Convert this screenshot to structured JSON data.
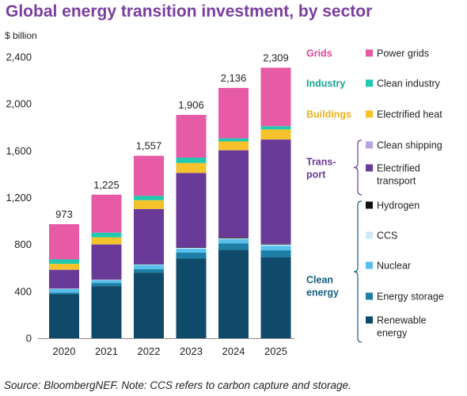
{
  "title": "Global energy transition investment, by sector",
  "source": "Source: BloombergNEF. Note: CCS refers to carbon capture and storage.",
  "chart_data": {
    "type": "bar",
    "stacked": true,
    "unit_label": "$ billion",
    "categories": [
      "2020",
      "2021",
      "2022",
      "2023",
      "2024",
      "2025"
    ],
    "ylim": [
      0,
      2400
    ],
    "yticks": [
      0,
      400,
      800,
      1200,
      1600,
      2000,
      2400
    ],
    "ytick_labels": [
      "0",
      "400",
      "800",
      "1,200",
      "1,600",
      "2,000",
      "2,400"
    ],
    "totals": [
      "973",
      "1,225",
      "1,557",
      "1,906",
      "2,136",
      "2,309"
    ],
    "grid": false,
    "legend_position": "right",
    "series": [
      {
        "name": "Renewable energy",
        "label_lines": [
          "Renewable",
          "energy"
        ],
        "color": "#0f4a6b",
        "values": [
          375,
          445,
          560,
          680,
          755,
          690
        ]
      },
      {
        "name": "Energy storage",
        "color": "#1d7ea6",
        "values": [
          15,
          25,
          30,
          50,
          55,
          60
        ]
      },
      {
        "name": "Nuclear",
        "color": "#58c0ec",
        "values": [
          30,
          25,
          35,
          35,
          35,
          40
        ]
      },
      {
        "name": "CCS",
        "color": "#cfe9f7",
        "values": [
          3,
          4,
          5,
          6,
          8,
          10
        ]
      },
      {
        "name": "Hydrogen",
        "color": "#111111",
        "values": [
          1,
          1,
          2,
          4,
          6,
          6
        ]
      },
      {
        "name": "Electrified transport",
        "label_lines": [
          "Electrified",
          "transport"
        ],
        "color": "#6a3a98",
        "values": [
          160,
          300,
          470,
          635,
          745,
          890
        ]
      },
      {
        "name": "Clean shipping",
        "color": "#b8a3dc",
        "values": [
          1,
          1,
          1,
          1,
          1,
          1
        ]
      },
      {
        "name": "Electrified heat",
        "color": "#f5c22b",
        "values": [
          50,
          60,
          75,
          85,
          75,
          85
        ]
      },
      {
        "name": "Clean industry",
        "color": "#1ec9b0",
        "values": [
          38,
          40,
          37,
          45,
          26,
          28
        ]
      },
      {
        "name": "Power grids",
        "color": "#e75aa6",
        "values": [
          300,
          324,
          342,
          365,
          430,
          499
        ]
      }
    ],
    "legend_groups": [
      {
        "name": "Grids",
        "color": "#e0459a",
        "members": [
          "Power grids"
        ]
      },
      {
        "name": "Industry",
        "color": "#1aa58f",
        "members": [
          "Clean industry"
        ]
      },
      {
        "name": "Buildings",
        "color": "#e8b21f",
        "members": [
          "Electrified heat"
        ]
      },
      {
        "name": "Transport",
        "label_lines": [
          "Trans-",
          "port"
        ],
        "color": "#6a3a98",
        "members": [
          "Clean shipping",
          "Electrified transport"
        ]
      },
      {
        "name": "Clean energy",
        "label_lines": [
          "Clean",
          "energy"
        ],
        "color": "#15607f",
        "members": [
          "Hydrogen",
          "CCS",
          "Nuclear",
          "Energy storage",
          "Renewable energy"
        ]
      }
    ]
  }
}
